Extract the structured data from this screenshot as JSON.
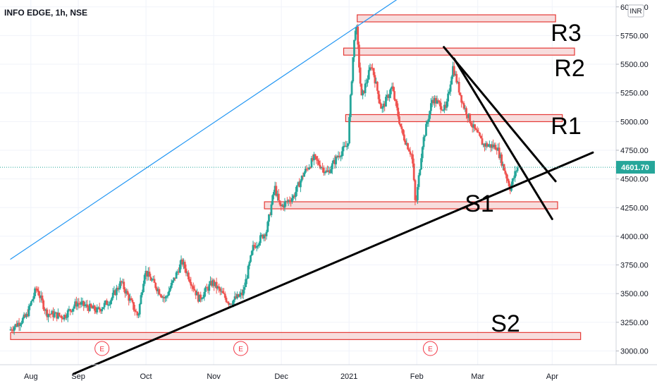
{
  "header": {
    "title": "INFO EDGE, 1h, NSE"
  },
  "currency_badge": "INR",
  "current_price_label": "4601.70",
  "colors": {
    "up": "#26a69a",
    "down": "#ef5350",
    "zone_fill": "#f5d5d5",
    "zone_stroke": "#e53935",
    "trend_blue": "#2196f3",
    "price_line": "#26a69a",
    "event": "#f23645",
    "lines": "#000000"
  },
  "chart_data": {
    "type": "candlestick",
    "title": "INFO EDGE, 1h, NSE",
    "currency": "INR",
    "last_price": 4601.7,
    "y_ticks": [
      "6000.00",
      "5750.00",
      "5500.00",
      "5250.00",
      "5000.00",
      "4750.00",
      "4500.00",
      "4250.00",
      "4000.00",
      "3750.00",
      "3500.00",
      "3250.00",
      "3000.00"
    ],
    "y_values": [
      6000,
      5750,
      5500,
      5250,
      5000,
      4750,
      4500,
      4250,
      4000,
      3750,
      3500,
      3250,
      3000
    ],
    "ylim": [
      2880,
      6060
    ],
    "x_ticks": [
      "Aug",
      "Sep",
      "Oct",
      "Nov",
      "Dec",
      "2021",
      "Feb",
      "Mar",
      "Apr"
    ],
    "x_tick_idx": [
      0.3,
      1.0,
      2.0,
      3.0,
      4.0,
      5.0,
      6.0,
      6.9,
      8.0
    ],
    "xlim": [
      0,
      8.6
    ],
    "price_path": [
      [
        0.0,
        3180
      ],
      [
        0.25,
        3300
      ],
      [
        0.4,
        3550
      ],
      [
        0.55,
        3330
      ],
      [
        0.8,
        3300
      ],
      [
        1.0,
        3420
      ],
      [
        1.3,
        3350
      ],
      [
        1.5,
        3450
      ],
      [
        1.65,
        3600
      ],
      [
        1.9,
        3300
      ],
      [
        2.0,
        3700
      ],
      [
        2.3,
        3450
      ],
      [
        2.55,
        3780
      ],
      [
        2.8,
        3450
      ],
      [
        3.0,
        3600
      ],
      [
        3.25,
        3420
      ],
      [
        3.45,
        3500
      ],
      [
        3.6,
        3900
      ],
      [
        3.8,
        4050
      ],
      [
        3.92,
        4430
      ],
      [
        4.0,
        4250
      ],
      [
        4.2,
        4350
      ],
      [
        4.35,
        4550
      ],
      [
        4.5,
        4680
      ],
      [
        4.7,
        4550
      ],
      [
        4.85,
        4700
      ],
      [
        5.0,
        4800
      ],
      [
        5.08,
        5600
      ],
      [
        5.12,
        5880
      ],
      [
        5.2,
        5200
      ],
      [
        5.35,
        5500
      ],
      [
        5.5,
        5100
      ],
      [
        5.65,
        5300
      ],
      [
        5.8,
        4900
      ],
      [
        5.95,
        4700
      ],
      [
        6.0,
        4250
      ],
      [
        6.1,
        4800
      ],
      [
        6.25,
        5200
      ],
      [
        6.45,
        5100
      ],
      [
        6.55,
        5480
      ],
      [
        6.7,
        5150
      ],
      [
        6.85,
        4950
      ],
      [
        7.0,
        4800
      ],
      [
        7.2,
        4780
      ],
      [
        7.4,
        4420
      ],
      [
        7.5,
        4600
      ]
    ],
    "levels": [
      {
        "name": "R3",
        "price": 5900,
        "x_from": 5.12,
        "x_to": 8.05
      },
      {
        "name": "R2",
        "price": 5610,
        "x_from": 4.92,
        "x_to": 8.33
      },
      {
        "name": "R1",
        "price": 5030,
        "x_from": 4.95,
        "x_to": 8.15
      },
      {
        "name": "S1",
        "price": 4270,
        "x_from": 3.75,
        "x_to": 8.08
      },
      {
        "name": "S2",
        "price": 3130,
        "x_from": 0.0,
        "x_to": 8.42
      }
    ],
    "trendlines": [
      {
        "color": "#000000",
        "points": [
          [
            0.93,
            2800
          ],
          [
            8.6,
            4730
          ]
        ]
      },
      {
        "color": "#000000",
        "points": [
          [
            6.4,
            5650
          ],
          [
            8.05,
            4480
          ]
        ]
      },
      {
        "color": "#000000",
        "points": [
          [
            6.55,
            5550
          ],
          [
            8.0,
            4150
          ]
        ]
      },
      {
        "color": "#2196f3",
        "points": [
          [
            0.0,
            3800
          ],
          [
            6.05,
            6200
          ]
        ]
      }
    ],
    "events": [
      {
        "label": "E",
        "x": 1.35
      },
      {
        "label": "E",
        "x": 3.4
      },
      {
        "label": "E",
        "x": 6.2
      }
    ]
  }
}
